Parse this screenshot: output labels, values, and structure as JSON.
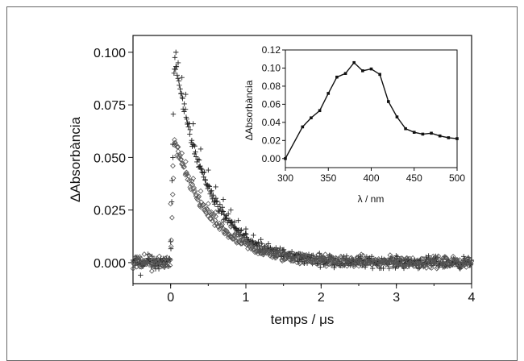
{
  "chart_data": [
    {
      "type": "scatter",
      "xlabel": "temps / μs",
      "ylabel": "ΔAbsorbància",
      "xlim": [
        -0.5,
        4
      ],
      "ylim": [
        -0.01,
        0.108
      ],
      "xticks": [
        "0",
        "1",
        "2",
        "3",
        "4"
      ],
      "yticks": [
        "0.000",
        "0.025",
        "0.050",
        "0.075",
        "0.100"
      ],
      "grid": false,
      "series": [
        {
          "marker": "plus",
          "color": "#222222",
          "model": "decay",
          "amplitude": 0.098,
          "lifetime_us": 0.45,
          "onset_us": 0.05,
          "points": [
            [
              -0.45,
              0.002
            ],
            [
              -0.4,
              -0.006
            ],
            [
              -0.3,
              0.004
            ],
            [
              -0.2,
              -0.003
            ],
            [
              -0.1,
              0.002
            ],
            [
              0.0,
              0.01
            ],
            [
              0.03,
              0.05
            ],
            [
              0.05,
              0.092
            ],
            [
              0.07,
              0.1
            ],
            [
              0.1,
              0.095
            ],
            [
              0.15,
              0.088
            ],
            [
              0.2,
              0.08
            ],
            [
              0.3,
              0.066
            ],
            [
              0.4,
              0.054
            ],
            [
              0.5,
              0.044
            ],
            [
              0.6,
              0.036
            ],
            [
              0.7,
              0.03
            ],
            [
              0.8,
              0.025
            ],
            [
              0.9,
              0.02
            ],
            [
              1.0,
              0.016
            ],
            [
              1.1,
              0.013
            ],
            [
              1.2,
              0.011
            ],
            [
              1.3,
              0.009
            ],
            [
              1.4,
              0.007
            ],
            [
              1.5,
              0.006
            ],
            [
              1.7,
              0.004
            ],
            [
              2.0,
              0.003
            ],
            [
              2.5,
              0.002
            ],
            [
              3.0,
              0.002
            ],
            [
              3.5,
              0.001
            ],
            [
              3.9,
              0.001
            ]
          ]
        },
        {
          "marker": "diamond",
          "color": "#555555",
          "model": "decay",
          "amplitude": 0.057,
          "lifetime_us": 0.5,
          "onset_us": 0.05,
          "points": [
            [
              -0.45,
              -0.002
            ],
            [
              -0.35,
              0.004
            ],
            [
              -0.25,
              -0.004
            ],
            [
              -0.15,
              0.003
            ],
            [
              -0.05,
              0.001
            ],
            [
              0.0,
              0.028
            ],
            [
              0.03,
              0.046
            ],
            [
              0.06,
              0.057
            ],
            [
              0.1,
              0.055
            ],
            [
              0.15,
              0.052
            ],
            [
              0.2,
              0.048
            ],
            [
              0.3,
              0.04
            ],
            [
              0.4,
              0.034
            ],
            [
              0.5,
              0.028
            ],
            [
              0.6,
              0.024
            ],
            [
              0.7,
              0.02
            ],
            [
              0.8,
              0.017
            ],
            [
              0.9,
              0.014
            ],
            [
              1.0,
              0.012
            ],
            [
              1.2,
              0.009
            ],
            [
              1.4,
              0.006
            ],
            [
              1.6,
              0.004
            ],
            [
              2.0,
              0.002
            ],
            [
              2.5,
              0.001
            ],
            [
              3.0,
              0.001
            ],
            [
              3.5,
              0.001
            ],
            [
              3.95,
              0.002
            ]
          ]
        }
      ]
    },
    {
      "type": "line",
      "xlabel": "λ / nm",
      "ylabel": "ΔAbsorbància",
      "xlim": [
        300,
        500
      ],
      "ylim": [
        -0.01,
        0.12
      ],
      "xticks": [
        "300",
        "350",
        "400",
        "450",
        "500"
      ],
      "yticks": [
        "0.00",
        "0.02",
        "0.04",
        "0.06",
        "0.08",
        "0.10",
        "0.12"
      ],
      "grid": false,
      "marker": "square",
      "color": "#111111",
      "x": [
        300,
        320,
        330,
        340,
        350,
        360,
        370,
        380,
        390,
        400,
        410,
        420,
        430,
        440,
        450,
        460,
        470,
        480,
        490,
        500
      ],
      "values": [
        0.0,
        0.035,
        0.045,
        0.053,
        0.072,
        0.09,
        0.094,
        0.106,
        0.097,
        0.099,
        0.093,
        0.063,
        0.046,
        0.033,
        0.029,
        0.027,
        0.028,
        0.025,
        0.023,
        0.022
      ]
    }
  ]
}
